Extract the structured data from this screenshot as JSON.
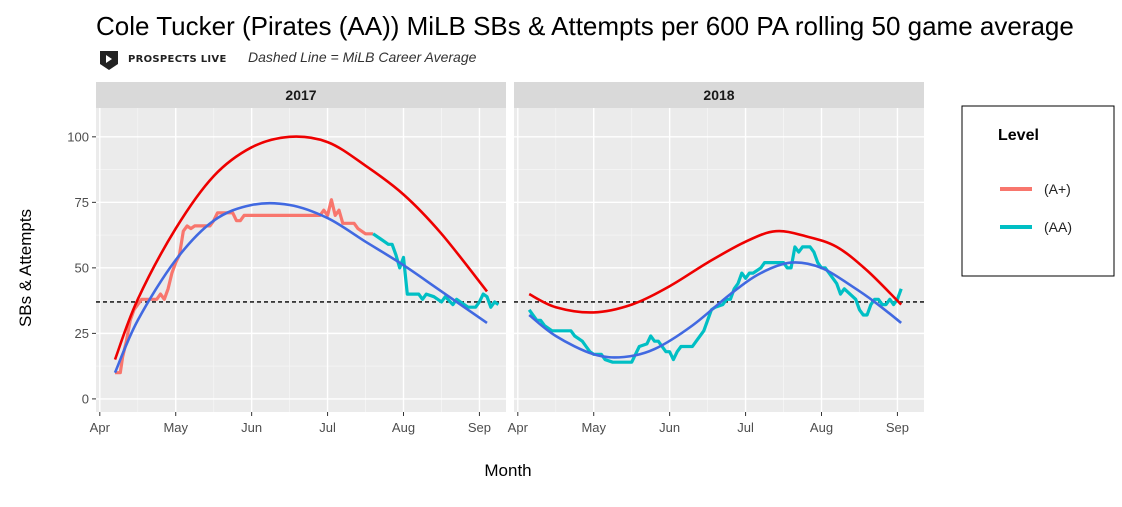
{
  "chart_data": {
    "type": "line",
    "title": "Cole Tucker (Pirates (AA)) MiLB SBs & Attempts per 600 PA rolling 50 game average",
    "subtitle": "Dashed Line = MiLB Career Average",
    "brand": "PROSPECTS LIVE",
    "xlabel": "Month",
    "ylabel": "SBs & Attempts",
    "ylim": [
      -5,
      111
    ],
    "y_ticks": [
      0,
      25,
      50,
      75,
      100
    ],
    "x_tick_labels": [
      "Apr",
      "May",
      "Jun",
      "Jul",
      "Aug",
      "Sep"
    ],
    "x_tick_positions": [
      0,
      1,
      2,
      3,
      4,
      5
    ],
    "xlim": [
      -0.05,
      5.35
    ],
    "career_average": 37,
    "legend": {
      "title": "Level",
      "placement": "right"
    },
    "level_colors": {
      "A+": "#f8766d",
      "AA": "#00bfc4"
    },
    "level_labels": {
      "A+": "(A+)",
      "AA": "(AA)"
    },
    "trend_colors": {
      "red": "#ee0000",
      "blue": "#4169e1"
    },
    "panels": [
      {
        "label": "2017",
        "series": [
          {
            "level": "A+",
            "points": [
              [
                0.2,
                10
              ],
              [
                0.27,
                10
              ],
              [
                0.3,
                16
              ],
              [
                0.35,
                22
              ],
              [
                0.4,
                30
              ],
              [
                0.45,
                34
              ],
              [
                0.5,
                36
              ],
              [
                0.55,
                38
              ],
              [
                0.65,
                38
              ],
              [
                0.75,
                38
              ],
              [
                0.8,
                40
              ],
              [
                0.85,
                38
              ],
              [
                0.9,
                42
              ],
              [
                0.95,
                48
              ],
              [
                1.0,
                52
              ],
              [
                1.05,
                55
              ],
              [
                1.1,
                64
              ],
              [
                1.15,
                66
              ],
              [
                1.2,
                65
              ],
              [
                1.25,
                66
              ],
              [
                1.45,
                66
              ],
              [
                1.5,
                68
              ],
              [
                1.55,
                71
              ],
              [
                1.6,
                71
              ],
              [
                1.75,
                71
              ],
              [
                1.8,
                68
              ],
              [
                1.85,
                68
              ],
              [
                1.9,
                70
              ],
              [
                2.1,
                70
              ],
              [
                2.5,
                70
              ],
              [
                2.9,
                70
              ],
              [
                2.95,
                72
              ],
              [
                3.0,
                70
              ],
              [
                3.05,
                76
              ],
              [
                3.1,
                70
              ],
              [
                3.15,
                72
              ],
              [
                3.2,
                67
              ],
              [
                3.35,
                67
              ],
              [
                3.4,
                65
              ],
              [
                3.5,
                63
              ],
              [
                3.6,
                63
              ]
            ]
          },
          {
            "level": "AA",
            "points": [
              [
                3.6,
                63
              ],
              [
                3.7,
                61
              ],
              [
                3.8,
                59
              ],
              [
                3.85,
                59
              ],
              [
                3.9,
                55
              ],
              [
                3.95,
                50
              ],
              [
                4.0,
                54
              ],
              [
                4.05,
                40
              ],
              [
                4.2,
                40
              ],
              [
                4.25,
                38
              ],
              [
                4.3,
                40
              ],
              [
                4.4,
                39
              ],
              [
                4.5,
                37
              ],
              [
                4.55,
                39
              ],
              [
                4.65,
                36
              ],
              [
                4.7,
                38
              ],
              [
                4.75,
                37
              ],
              [
                4.85,
                35
              ],
              [
                4.95,
                35
              ],
              [
                5.0,
                37
              ],
              [
                5.05,
                40
              ],
              [
                5.1,
                39
              ],
              [
                5.15,
                35
              ],
              [
                5.2,
                37
              ],
              [
                5.25,
                36
              ]
            ]
          }
        ],
        "trend_red": [
          [
            0.2,
            15
          ],
          [
            0.5,
            38
          ],
          [
            1.0,
            65
          ],
          [
            1.5,
            85
          ],
          [
            2.0,
            96
          ],
          [
            2.5,
            100
          ],
          [
            3.0,
            98
          ],
          [
            3.5,
            89
          ],
          [
            4.0,
            78
          ],
          [
            4.5,
            63
          ],
          [
            5.1,
            41
          ]
        ],
        "trend_blue": [
          [
            0.2,
            10
          ],
          [
            0.5,
            30
          ],
          [
            1.0,
            53
          ],
          [
            1.5,
            68
          ],
          [
            2.0,
            74
          ],
          [
            2.5,
            74
          ],
          [
            3.0,
            69
          ],
          [
            3.5,
            60
          ],
          [
            4.0,
            51
          ],
          [
            4.5,
            41
          ],
          [
            5.1,
            29
          ]
        ]
      },
      {
        "label": "2018",
        "series": [
          {
            "level": "AA",
            "points": [
              [
                0.15,
                34
              ],
              [
                0.25,
                30
              ],
              [
                0.3,
                30
              ],
              [
                0.35,
                28
              ],
              [
                0.45,
                26
              ],
              [
                0.6,
                26
              ],
              [
                0.7,
                26
              ],
              [
                0.75,
                24
              ],
              [
                0.85,
                22
              ],
              [
                0.9,
                20
              ],
              [
                0.95,
                18
              ],
              [
                1.0,
                17
              ],
              [
                1.1,
                17
              ],
              [
                1.15,
                15
              ],
              [
                1.25,
                14
              ],
              [
                1.5,
                14
              ],
              [
                1.55,
                17
              ],
              [
                1.6,
                20
              ],
              [
                1.7,
                21
              ],
              [
                1.75,
                24
              ],
              [
                1.8,
                22
              ],
              [
                1.85,
                22
              ],
              [
                1.9,
                20
              ],
              [
                1.95,
                18
              ],
              [
                2.0,
                18
              ],
              [
                2.05,
                15
              ],
              [
                2.1,
                18
              ],
              [
                2.15,
                20
              ],
              [
                2.3,
                20
              ],
              [
                2.35,
                22
              ],
              [
                2.45,
                26
              ],
              [
                2.5,
                30
              ],
              [
                2.55,
                34
              ],
              [
                2.6,
                35
              ],
              [
                2.7,
                36
              ],
              [
                2.75,
                38
              ],
              [
                2.8,
                38
              ],
              [
                2.85,
                42
              ],
              [
                2.9,
                44
              ],
              [
                2.95,
                48
              ],
              [
                3.0,
                46
              ],
              [
                3.05,
                48
              ],
              [
                3.1,
                48
              ],
              [
                3.2,
                50
              ],
              [
                3.25,
                52
              ],
              [
                3.5,
                52
              ],
              [
                3.55,
                50
              ],
              [
                3.6,
                50
              ],
              [
                3.65,
                58
              ],
              [
                3.7,
                56
              ],
              [
                3.75,
                58
              ],
              [
                3.85,
                58
              ],
              [
                3.9,
                56
              ],
              [
                3.95,
                52
              ],
              [
                4.0,
                50
              ],
              [
                4.05,
                50
              ],
              [
                4.1,
                48
              ],
              [
                4.15,
                46
              ],
              [
                4.2,
                44
              ],
              [
                4.25,
                40
              ],
              [
                4.3,
                42
              ],
              [
                4.45,
                38
              ],
              [
                4.5,
                34
              ],
              [
                4.55,
                32
              ],
              [
                4.6,
                32
              ],
              [
                4.65,
                36
              ],
              [
                4.7,
                38
              ],
              [
                4.75,
                38
              ],
              [
                4.8,
                36
              ],
              [
                4.85,
                36
              ],
              [
                4.9,
                38
              ],
              [
                4.95,
                36
              ],
              [
                5.0,
                38
              ],
              [
                5.05,
                42
              ]
            ]
          }
        ],
        "trend_red": [
          [
            0.15,
            40
          ],
          [
            0.5,
            35
          ],
          [
            1.0,
            33
          ],
          [
            1.5,
            36
          ],
          [
            2.0,
            43
          ],
          [
            2.5,
            52
          ],
          [
            3.0,
            60
          ],
          [
            3.4,
            64
          ],
          [
            3.8,
            62
          ],
          [
            4.2,
            58
          ],
          [
            4.6,
            49
          ],
          [
            5.05,
            36
          ]
        ],
        "trend_blue": [
          [
            0.15,
            32
          ],
          [
            0.5,
            24
          ],
          [
            1.0,
            17
          ],
          [
            1.4,
            16
          ],
          [
            1.8,
            19
          ],
          [
            2.3,
            28
          ],
          [
            2.8,
            40
          ],
          [
            3.2,
            48
          ],
          [
            3.6,
            52
          ],
          [
            4.0,
            50
          ],
          [
            4.4,
            43
          ],
          [
            4.7,
            37
          ],
          [
            5.05,
            29
          ]
        ]
      }
    ]
  }
}
